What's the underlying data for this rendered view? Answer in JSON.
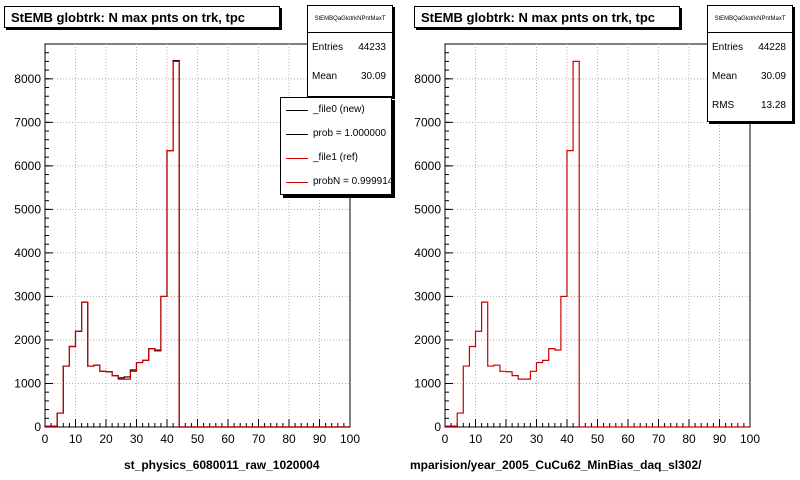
{
  "footer_left_small": "",
  "chart_data": [
    {
      "type": "bar",
      "histogram": true,
      "title": "StEMB globtrk: N max pnts on trk, tpc",
      "xlabel": "st_physics_6080011_raw_1020004",
      "ylabel": "",
      "xlim": [
        0,
        100
      ],
      "ylim": [
        0,
        8800
      ],
      "xticks": [
        "0",
        "10",
        "20",
        "30",
        "40",
        "50",
        "60",
        "70",
        "80",
        "90",
        "100"
      ],
      "yticks": [
        "0",
        "1000",
        "2000",
        "3000",
        "4000",
        "5000",
        "6000",
        "7000",
        "8000"
      ],
      "bin_width": 2,
      "bin_low_edges": [
        0,
        2,
        4,
        6,
        8,
        10,
        12,
        14,
        16,
        18,
        20,
        22,
        24,
        26,
        28,
        30,
        32,
        34,
        36,
        38,
        40,
        42,
        44,
        46
      ],
      "series": [
        {
          "name": "_file0 (new)",
          "color": "#000000",
          "values": [
            20,
            20,
            320,
            1400,
            1850,
            2200,
            2870,
            1400,
            1420,
            1280,
            1270,
            1180,
            1130,
            1150,
            1310,
            1480,
            1530,
            1800,
            1750,
            3000,
            6350,
            8420,
            0,
            0
          ]
        },
        {
          "name": "_file1 (ref)",
          "color": "#cc0000",
          "values": [
            20,
            20,
            320,
            1400,
            1850,
            2200,
            2870,
            1400,
            1420,
            1280,
            1270,
            1180,
            1100,
            1100,
            1280,
            1480,
            1530,
            1800,
            1770,
            3000,
            6350,
            8400,
            0,
            0
          ]
        }
      ],
      "stats": {
        "name": "StEMBQaGlotrkNPntMaxT",
        "entries_label": "Entries",
        "entries": "44233",
        "mean_label": "Mean",
        "mean": "30.09"
      },
      "legend": {
        "placement": "top-right",
        "entries": [
          {
            "label": "_file0 (new)",
            "color": "#000000"
          },
          {
            "label": "prob = 1.000000",
            "color": "#000000"
          },
          {
            "label": "_file1 (ref)",
            "color": "#cc0000"
          },
          {
            "label": "probN = 0.999914",
            "color": "#cc0000"
          }
        ]
      }
    },
    {
      "type": "bar",
      "histogram": true,
      "title": "StEMB globtrk: N max pnts on trk, tpc",
      "xlabel": "mparision/year_2005_CuCu62_MinBias_daq_sl302/",
      "ylabel": "",
      "xlim": [
        0,
        100
      ],
      "ylim": [
        0,
        8800
      ],
      "xticks": [
        "0",
        "10",
        "20",
        "30",
        "40",
        "50",
        "60",
        "70",
        "80",
        "90",
        "100"
      ],
      "yticks": [
        "0",
        "1000",
        "2000",
        "3000",
        "4000",
        "5000",
        "6000",
        "7000",
        "8000"
      ],
      "bin_width": 2,
      "bin_low_edges": [
        0,
        2,
        4,
        6,
        8,
        10,
        12,
        14,
        16,
        18,
        20,
        22,
        24,
        26,
        28,
        30,
        32,
        34,
        36,
        38,
        40,
        42,
        44,
        46
      ],
      "series": [
        {
          "name": "",
          "color": "#cc0000",
          "values": [
            20,
            20,
            320,
            1400,
            1850,
            2200,
            2870,
            1400,
            1420,
            1280,
            1270,
            1180,
            1100,
            1100,
            1280,
            1480,
            1530,
            1800,
            1770,
            3000,
            6350,
            8400,
            0,
            0
          ]
        }
      ],
      "stats": {
        "name": "StEMBQaGlotrkNPntMaxT",
        "entries_label": "Entries",
        "entries": "44228",
        "mean_label": "Mean",
        "mean": "30.09",
        "rms_label": "RMS",
        "rms": "13.28"
      }
    }
  ]
}
